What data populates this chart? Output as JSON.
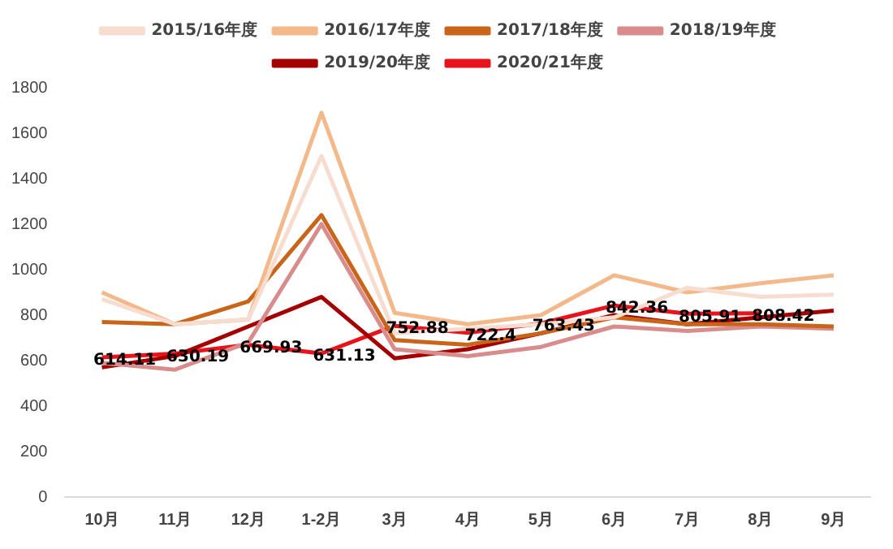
{
  "chart_data": {
    "type": "line",
    "categories": [
      "10月",
      "11月",
      "12月",
      "1-2月",
      "3月",
      "4月",
      "5月",
      "6月",
      "7月",
      "8月",
      "9月"
    ],
    "series": [
      {
        "name": "2015/16年度",
        "color": "#f7ddd0",
        "values": [
          870,
          760,
          780,
          1500,
          720,
          740,
          760,
          790,
          920,
          880,
          890
        ]
      },
      {
        "name": "2016/17年度",
        "color": "#f4b98a",
        "values": [
          900,
          760,
          780,
          1690,
          810,
          760,
          800,
          975,
          900,
          940,
          975
        ]
      },
      {
        "name": "2017/18年度",
        "color": "#c8651b",
        "values": [
          770,
          760,
          860,
          1240,
          690,
          670,
          720,
          790,
          760,
          760,
          750
        ]
      },
      {
        "name": "2018/19年度",
        "color": "#d98c8c",
        "values": [
          590,
          560,
          680,
          1200,
          650,
          620,
          660,
          750,
          730,
          750,
          740
        ]
      },
      {
        "name": "2019/20年度",
        "color": "#a50000",
        "values": [
          570,
          620,
          750,
          880,
          610,
          650,
          720,
          800,
          760,
          790,
          820
        ]
      },
      {
        "name": "2020/21年度",
        "color": "#e8141b",
        "values": [
          614.11,
          630.19,
          669.93,
          631.13,
          752.88,
          722.4,
          763.43,
          842.36,
          805.91,
          808.42,
          null
        ],
        "value_labels": [
          "614.11",
          "630.19",
          "669.93",
          "631.13",
          "752.88",
          "722.4",
          "763.43",
          "842.36",
          "805.91",
          "808.42",
          null
        ]
      }
    ],
    "ylim": [
      0,
      1800
    ],
    "yticks": [
      0,
      200,
      400,
      600,
      800,
      1000,
      1200,
      1400,
      1600,
      1800
    ],
    "grid": false,
    "legend": "top",
    "marker": "none",
    "line_style": "solid"
  }
}
